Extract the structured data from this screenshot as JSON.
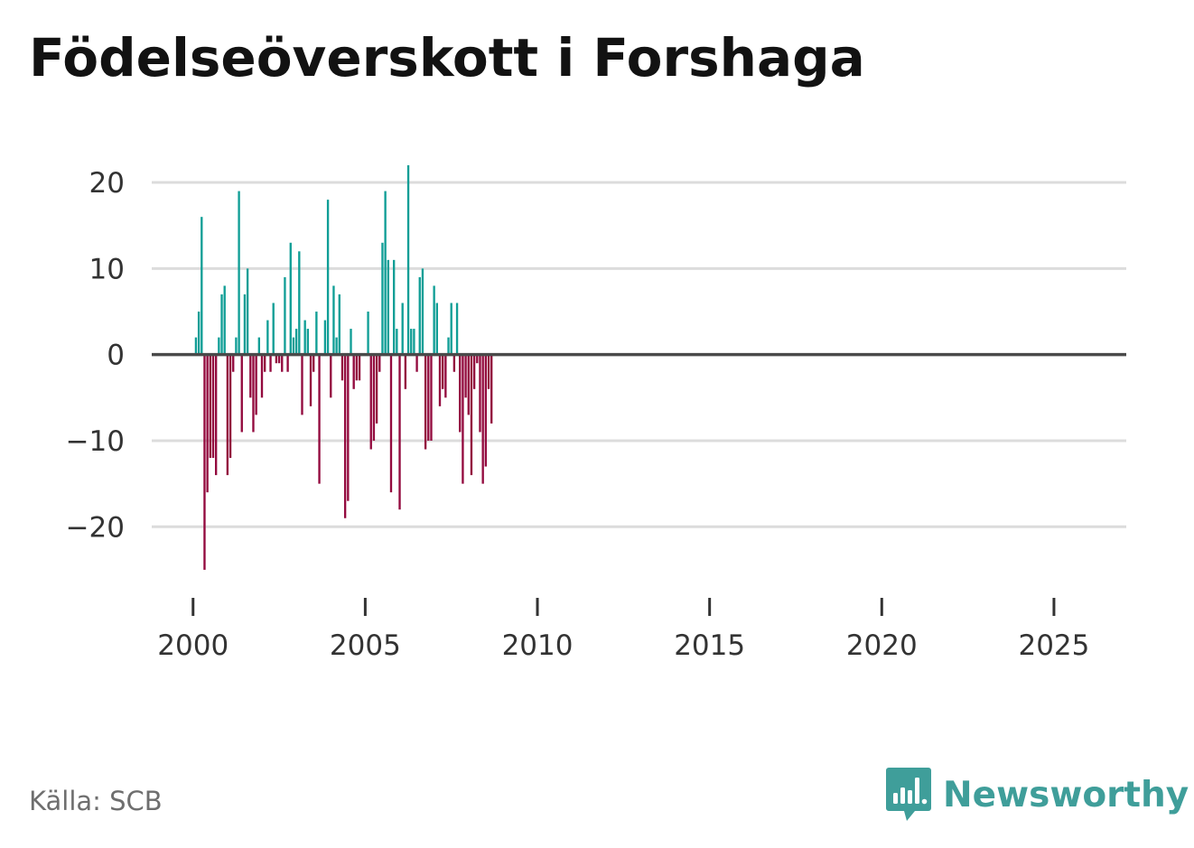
{
  "chart_data": {
    "type": "bar",
    "title": "Födelseöverskott i Forshaga",
    "xlabel": "",
    "ylabel": "",
    "ylim": [
      -27,
      22
    ],
    "xlim": [
      1998.8,
      2027.1
    ],
    "yticks": [
      20,
      10,
      0,
      -10,
      -20
    ],
    "ytick_labels": [
      "20",
      "10",
      "0",
      "−10",
      "−20"
    ],
    "xticks": [
      2000,
      2005,
      2010,
      2015,
      2020,
      2025
    ],
    "xtick_labels": [
      "2000",
      "2005",
      "2010",
      "2015",
      "2020",
      "2025"
    ],
    "grid": true,
    "legend": "none",
    "colors": {
      "positive": "#109e96",
      "negative": "#930a3e",
      "grid": "#dcdcdc",
      "zero_line": "#4a4a4a"
    },
    "frequency": "monthly",
    "start": "2000-01",
    "values": [
      0,
      2,
      5,
      16,
      -25,
      -16,
      -12,
      -12,
      -14,
      2,
      7,
      8,
      -14,
      -12,
      -2,
      2,
      19,
      -9,
      7,
      10,
      -5,
      -9,
      -7,
      2,
      -5,
      -2,
      4,
      -2,
      6,
      -1,
      -1,
      -2,
      9,
      -2,
      13,
      2,
      3,
      12,
      -7,
      4,
      3,
      -6,
      -2,
      5,
      -15,
      0,
      4,
      18,
      -5,
      8,
      2,
      7,
      -3,
      -19,
      -17,
      3,
      -4,
      -3,
      -3,
      0,
      0,
      5,
      -11,
      -10,
      -8,
      -2,
      13,
      19,
      11,
      -16,
      11,
      3,
      -18,
      6,
      -4,
      22,
      3,
      3,
      -2,
      9,
      10,
      -11,
      -10,
      -10,
      8,
      6,
      -6,
      -4,
      -5,
      2,
      6,
      -2,
      6,
      -9,
      -15,
      -5,
      -7,
      -14,
      -4,
      -1,
      -9,
      -15,
      -13,
      -4,
      -8
    ]
  },
  "source": "Källa: SCB",
  "brand": {
    "name": "Newsworthy",
    "icon": "newsworthy-logo-icon"
  }
}
